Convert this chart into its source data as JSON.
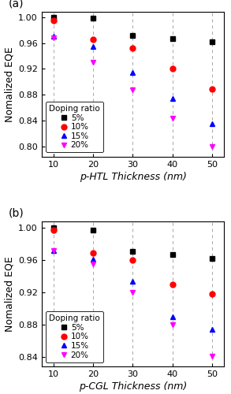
{
  "x": [
    10,
    20,
    30,
    40,
    50
  ],
  "panel_a": {
    "title": "(a)",
    "xlabel": "p-HTL Thickness (nm)",
    "ylabel": "Nomalized EQE",
    "ylim": [
      0.785,
      1.008
    ],
    "yticks": [
      0.8,
      0.84,
      0.88,
      0.92,
      0.96,
      1.0
    ],
    "series": {
      "5%": [
        1.0,
        0.998,
        0.971,
        0.967,
        0.962
      ],
      "10%": [
        0.995,
        0.965,
        0.952,
        0.921,
        0.889
      ],
      "15%": [
        0.97,
        0.955,
        0.914,
        0.875,
        0.836
      ],
      "20%": [
        0.968,
        0.93,
        0.888,
        0.844,
        0.8
      ]
    }
  },
  "panel_b": {
    "title": "(b)",
    "xlabel": "p-CGL Thickness (nm)",
    "ylabel": "Nomalized EQE",
    "ylim": [
      0.828,
      1.008
    ],
    "yticks": [
      0.84,
      0.88,
      0.92,
      0.96,
      1.0
    ],
    "series": {
      "5%": [
        1.0,
        0.998,
        0.971,
        0.967,
        0.962
      ],
      "10%": [
        0.998,
        0.969,
        0.96,
        0.93,
        0.918
      ],
      "15%": [
        0.972,
        0.961,
        0.934,
        0.89,
        0.874
      ],
      "20%": [
        0.972,
        0.955,
        0.92,
        0.88,
        0.841
      ]
    }
  },
  "colors": {
    "5%": "#000000",
    "10%": "#ff0000",
    "15%": "#0000ff",
    "20%": "#ff00ff"
  },
  "markers": {
    "5%": "s",
    "10%": "o",
    "15%": "^",
    "20%": "v"
  },
  "legend_title": "Doping ratio",
  "markersize": 5,
  "background_color": "#ffffff"
}
